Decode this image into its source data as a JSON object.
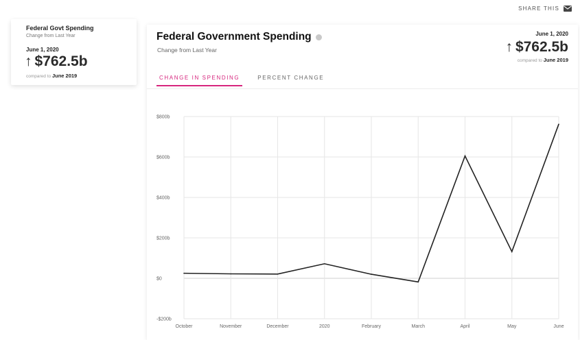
{
  "share": {
    "label": "SHARE THIS",
    "icon": "envelope-icon"
  },
  "mini_card": {
    "title": "Federal Govt Spending",
    "subtitle": "Change from Last Year",
    "date": "June 1, 2020",
    "value": "$762.5b",
    "arrow": "↑",
    "compare_prefix": "compared to",
    "compare_period": "June 2019"
  },
  "main_card": {
    "title": "Federal Government Spending",
    "subtitle": "Change from Last Year",
    "date": "June 1, 2020",
    "value": "$762.5b",
    "arrow": "↑",
    "compare_prefix": "compared to",
    "compare_period": "June 2019",
    "tabs": [
      {
        "label": "CHANGE IN SPENDING",
        "active": true
      },
      {
        "label": "PERCENT CHANGE",
        "active": false
      }
    ]
  },
  "colors": {
    "accent": "#d6247d",
    "line": "#222222",
    "grid": "#e6e6e6",
    "zero_line": "#cfcfcf"
  },
  "chart_data": {
    "type": "line",
    "categories": [
      "October",
      "November",
      "December",
      "2020",
      "February",
      "March",
      "April",
      "May",
      "June"
    ],
    "y_tick_labels": [
      "$800b",
      "$600b",
      "$400b",
      "$200b",
      "$0",
      "-$200b"
    ],
    "y_ticks": [
      800,
      600,
      400,
      200,
      0,
      -200
    ],
    "ylim": [
      -200,
      800
    ],
    "grid": true,
    "series": [
      {
        "values": [
          25,
          22,
          21,
          72,
          20,
          -18,
          605,
          132,
          762
        ]
      }
    ]
  }
}
